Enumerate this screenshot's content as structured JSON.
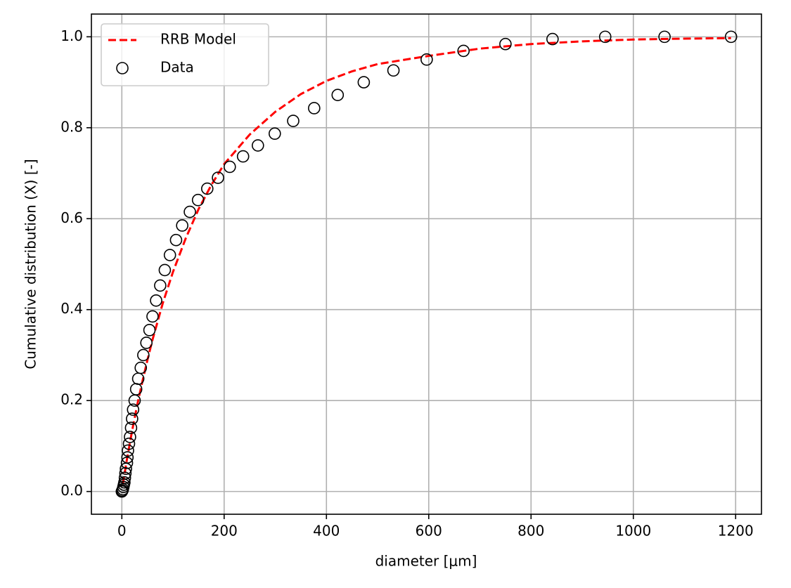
{
  "chart_data": {
    "type": "scatter",
    "xlabel": "diameter [μm]",
    "ylabel": "Cumulative distribution (X) [-]",
    "xlim": [
      -59.5,
      1250.5
    ],
    "ylim": [
      -0.05,
      1.05
    ],
    "xticks": [
      0,
      200,
      400,
      600,
      800,
      1000,
      1200
    ],
    "yticks": [
      {
        "value": 0,
        "label": "0.0"
      },
      0.2,
      0.4,
      0.6,
      0.8,
      {
        "value": 1,
        "label": "1.0"
      }
    ],
    "grid": true,
    "legend": "upper left",
    "series": [
      {
        "name": "RRB Model",
        "kind": "line",
        "linestyle": "dashed",
        "color": "#ff0000",
        "x": [
          2,
          10,
          20,
          30,
          40,
          50,
          60,
          80,
          100,
          125,
          150,
          175,
          200,
          250,
          300,
          350,
          400,
          450,
          500,
          600,
          700,
          800,
          900,
          1000,
          1100,
          1191
        ],
        "values": [
          0.016,
          0.071,
          0.133,
          0.19,
          0.241,
          0.289,
          0.334,
          0.414,
          0.483,
          0.557,
          0.621,
          0.674,
          0.72,
          0.785,
          0.835,
          0.874,
          0.903,
          0.924,
          0.94,
          0.958,
          0.974,
          0.984,
          0.99,
          0.994,
          0.996,
          0.997
        ]
      },
      {
        "name": "Data",
        "kind": "scatter",
        "color": "#000000",
        "x": [
          0,
          1,
          2,
          3,
          4,
          5,
          6,
          7,
          8,
          10,
          11,
          12,
          14,
          16,
          18,
          20,
          22,
          25,
          28,
          32,
          37,
          42,
          48,
          54,
          60,
          67,
          75,
          84,
          94,
          106,
          118,
          133,
          149,
          167,
          188,
          211,
          237,
          266,
          299,
          335,
          376,
          422,
          473,
          531,
          596,
          668,
          750,
          842,
          945,
          1061,
          1191
        ],
        "values": [
          0,
          0.002,
          0.005,
          0.01,
          0.015,
          0.02,
          0.03,
          0.04,
          0.05,
          0.063,
          0.075,
          0.09,
          0.105,
          0.12,
          0.14,
          0.16,
          0.18,
          0.2,
          0.225,
          0.248,
          0.272,
          0.3,
          0.327,
          0.355,
          0.385,
          0.42,
          0.453,
          0.487,
          0.52,
          0.553,
          0.585,
          0.615,
          0.641,
          0.666,
          0.69,
          0.714,
          0.737,
          0.761,
          0.787,
          0.815,
          0.843,
          0.872,
          0.9,
          0.926,
          0.95,
          0.969,
          0.984,
          0.995,
          1.0,
          1.0,
          1.0
        ]
      }
    ]
  }
}
